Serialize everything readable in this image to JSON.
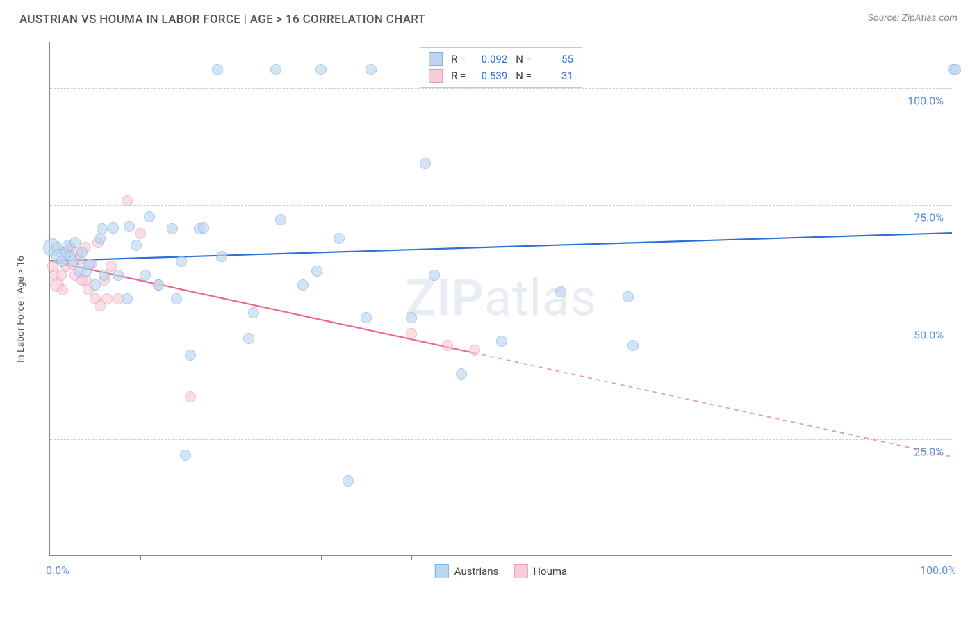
{
  "title": "AUSTRIAN VS HOUMA IN LABOR FORCE | AGE > 16 CORRELATION CHART",
  "source": "Source: ZipAtlas.com",
  "watermark": {
    "bold": "ZIP",
    "light": "atlas"
  },
  "chart": {
    "type": "scatter",
    "ylabel": "In Labor Force | Age > 16",
    "xlim": [
      0,
      100
    ],
    "ylim": [
      0,
      110
    ],
    "xlim_labels": {
      "min": "0.0%",
      "max": "100.0%"
    },
    "y_gridlines": [
      25,
      50,
      75,
      100
    ],
    "y_tick_labels": [
      "25.0%",
      "50.0%",
      "75.0%",
      "100.0%"
    ],
    "x_ticks": [
      10,
      20,
      30,
      40,
      50
    ],
    "background_color": "#ffffff",
    "grid_color": "#cccccc",
    "axis_color": "#888888",
    "marker_radius": 8,
    "marker_radius_large": 13,
    "marker_stroke_width": 1.5,
    "trend_line_width": 2.2,
    "dash_pattern": "6 6",
    "series": {
      "austrians": {
        "label": "Austrians",
        "fill": "#bcd6ef",
        "stroke": "#7daee0",
        "fill_opacity": 0.65,
        "line_color": "#2b70d8",
        "R": "0.092",
        "N": "55",
        "trend": {
          "x1": 0,
          "y1": 63,
          "x2": 100,
          "y2": 69,
          "solid_until": 100
        },
        "points": [
          {
            "x": 0.2,
            "y": 66,
            "r": 13
          },
          {
            "x": 0.8,
            "y": 66
          },
          {
            "x": 1.0,
            "y": 64,
            "r": 11
          },
          {
            "x": 1.3,
            "y": 63
          },
          {
            "x": 1.8,
            "y": 65
          },
          {
            "x": 2.0,
            "y": 66.5
          },
          {
            "x": 2.2,
            "y": 64
          },
          {
            "x": 2.5,
            "y": 63
          },
          {
            "x": 2.8,
            "y": 67
          },
          {
            "x": 3.2,
            "y": 61
          },
          {
            "x": 3.5,
            "y": 65
          },
          {
            "x": 4.0,
            "y": 61
          },
          {
            "x": 4.3,
            "y": 62.5
          },
          {
            "x": 5.0,
            "y": 58
          },
          {
            "x": 5.5,
            "y": 68
          },
          {
            "x": 5.8,
            "y": 70
          },
          {
            "x": 6.0,
            "y": 60
          },
          {
            "x": 7.0,
            "y": 70.2
          },
          {
            "x": 7.5,
            "y": 60
          },
          {
            "x": 8.5,
            "y": 55
          },
          {
            "x": 8.8,
            "y": 70.5
          },
          {
            "x": 9.5,
            "y": 66.5
          },
          {
            "x": 10.5,
            "y": 60
          },
          {
            "x": 11.0,
            "y": 72.5
          },
          {
            "x": 12.0,
            "y": 58
          },
          {
            "x": 13.5,
            "y": 70
          },
          {
            "x": 14.0,
            "y": 55
          },
          {
            "x": 14.5,
            "y": 63
          },
          {
            "x": 15.0,
            "y": 21.5
          },
          {
            "x": 15.5,
            "y": 43
          },
          {
            "x": 16.5,
            "y": 70
          },
          {
            "x": 17.0,
            "y": 70.2
          },
          {
            "x": 18.5,
            "y": 104
          },
          {
            "x": 19.0,
            "y": 64
          },
          {
            "x": 22.0,
            "y": 46.5
          },
          {
            "x": 22.5,
            "y": 52
          },
          {
            "x": 25.0,
            "y": 104
          },
          {
            "x": 25.5,
            "y": 72
          },
          {
            "x": 28.0,
            "y": 58
          },
          {
            "x": 29.5,
            "y": 61
          },
          {
            "x": 30.0,
            "y": 104
          },
          {
            "x": 32.0,
            "y": 68
          },
          {
            "x": 33.0,
            "y": 16
          },
          {
            "x": 35.0,
            "y": 51
          },
          {
            "x": 35.5,
            "y": 104
          },
          {
            "x": 40.0,
            "y": 51
          },
          {
            "x": 41.5,
            "y": 84
          },
          {
            "x": 42.5,
            "y": 60
          },
          {
            "x": 45.5,
            "y": 39
          },
          {
            "x": 50.0,
            "y": 46
          },
          {
            "x": 56.5,
            "y": 56.5
          },
          {
            "x": 64.0,
            "y": 55.5
          },
          {
            "x": 64.5,
            "y": 45
          },
          {
            "x": 100.0,
            "y": 104
          },
          {
            "x": 100.2,
            "y": 104
          }
        ]
      },
      "houma": {
        "label": "Houma",
        "fill": "#f7cdd7",
        "stroke": "#ea9bb2",
        "fill_opacity": 0.65,
        "line_color": "#e8698f",
        "R": "-0.539",
        "N": "31",
        "trend": {
          "x1": 0,
          "y1": 63,
          "x2": 100,
          "y2": 21,
          "solid_until": 47
        },
        "points": [
          {
            "x": 0.3,
            "y": 62
          },
          {
            "x": 0.5,
            "y": 60
          },
          {
            "x": 0.8,
            "y": 58,
            "r": 10
          },
          {
            "x": 1.2,
            "y": 60
          },
          {
            "x": 1.4,
            "y": 57
          },
          {
            "x": 1.8,
            "y": 62
          },
          {
            "x": 2.0,
            "y": 65
          },
          {
            "x": 2.2,
            "y": 66
          },
          {
            "x": 2.5,
            "y": 62.5
          },
          {
            "x": 2.8,
            "y": 60
          },
          {
            "x": 3.0,
            "y": 65
          },
          {
            "x": 3.3,
            "y": 63.5
          },
          {
            "x": 3.5,
            "y": 59
          },
          {
            "x": 3.9,
            "y": 66
          },
          {
            "x": 4.0,
            "y": 59
          },
          {
            "x": 4.2,
            "y": 57
          },
          {
            "x": 4.5,
            "y": 62.5
          },
          {
            "x": 5.0,
            "y": 55
          },
          {
            "x": 5.3,
            "y": 67
          },
          {
            "x": 5.5,
            "y": 53.5
          },
          {
            "x": 6.0,
            "y": 59
          },
          {
            "x": 6.3,
            "y": 55
          },
          {
            "x": 6.8,
            "y": 62
          },
          {
            "x": 7.5,
            "y": 55
          },
          {
            "x": 8.5,
            "y": 76
          },
          {
            "x": 10.0,
            "y": 69
          },
          {
            "x": 12.0,
            "y": 58
          },
          {
            "x": 15.5,
            "y": 34
          },
          {
            "x": 40.0,
            "y": 47.5
          },
          {
            "x": 44.0,
            "y": 45
          },
          {
            "x": 47.0,
            "y": 44
          }
        ]
      }
    },
    "stats_labels": {
      "R": "R =",
      "N": "N ="
    }
  },
  "legend": {
    "series1": "Austrians",
    "series2": "Houma"
  }
}
